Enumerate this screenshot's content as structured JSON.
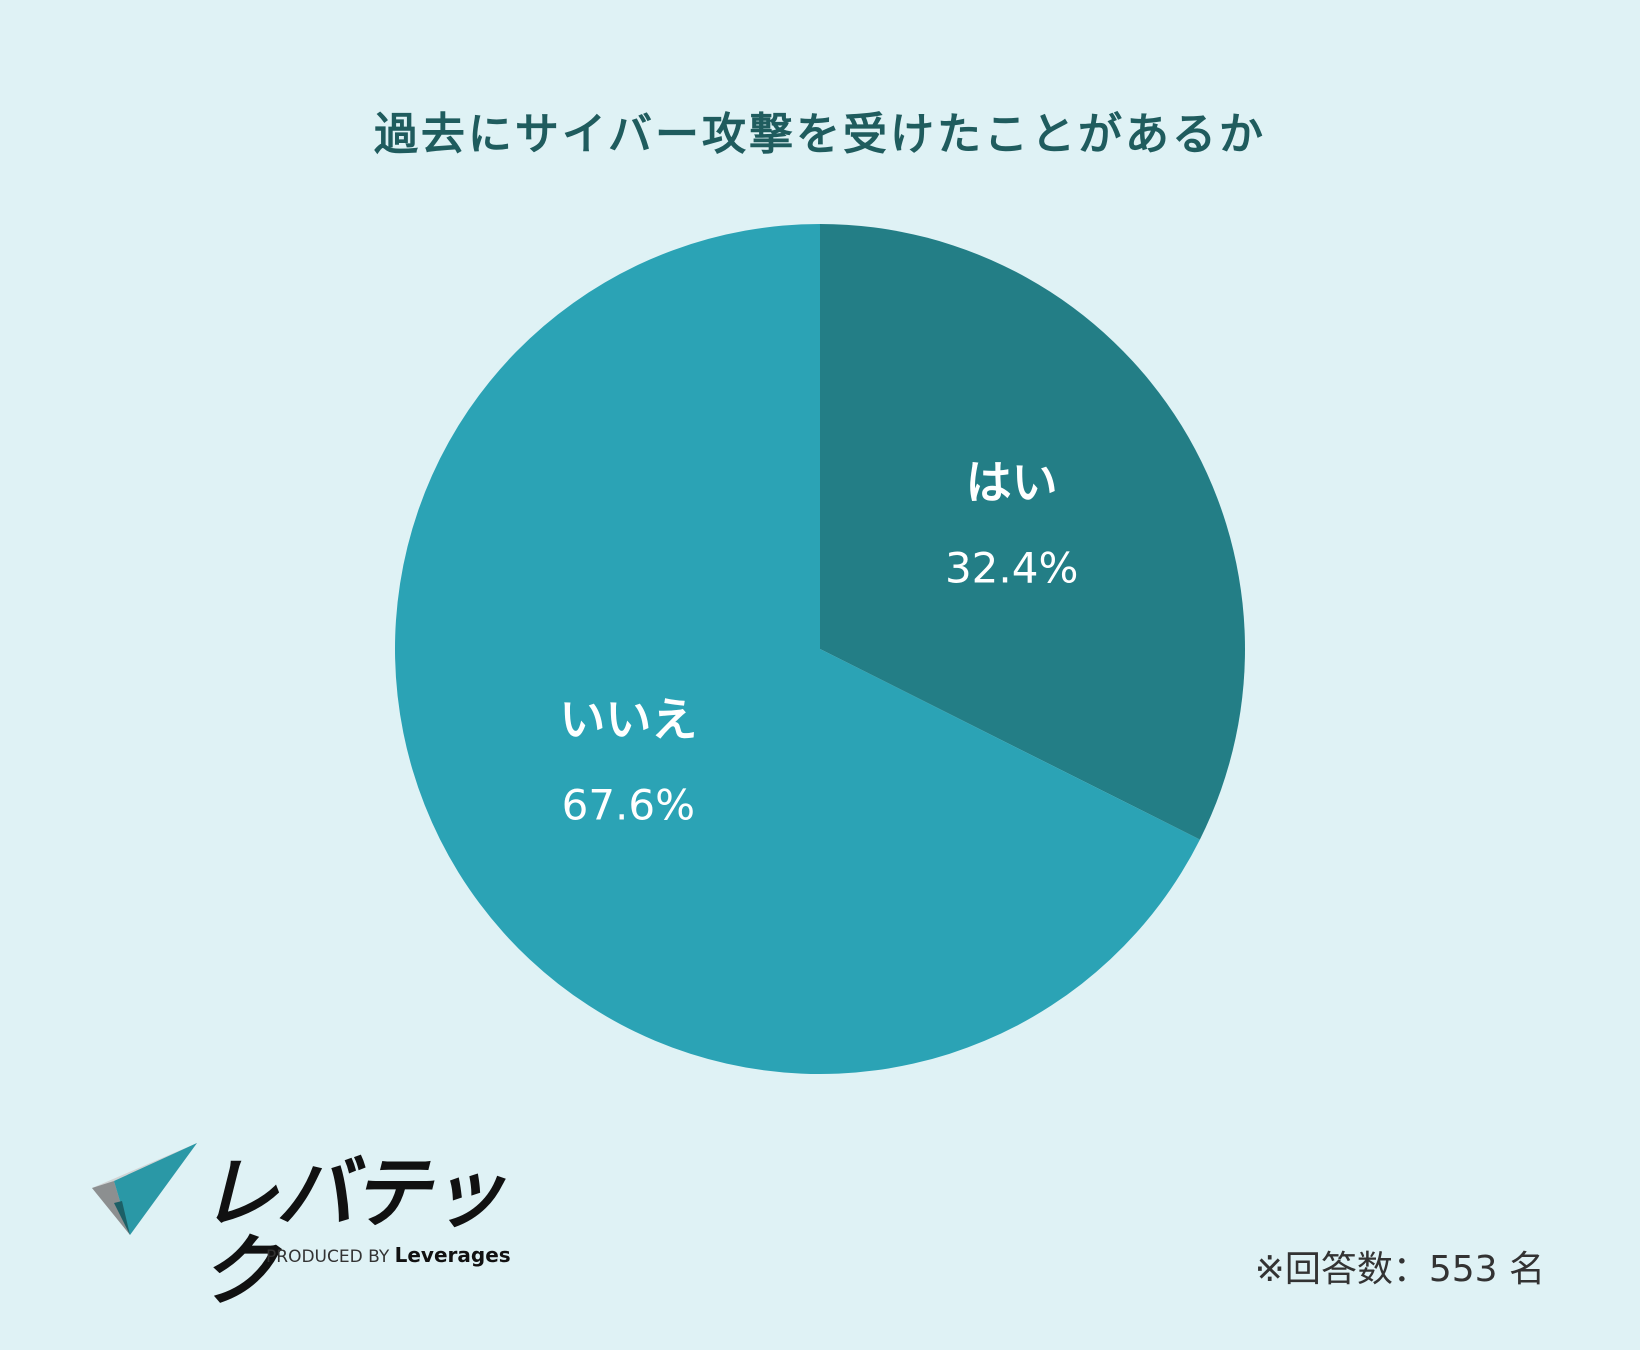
{
  "chart_data": {
    "type": "pie",
    "title": "過去にサイバー攻撃を受けたことがあるか",
    "slices": [
      {
        "label": "はい",
        "value": 32.4,
        "display": "32.4%",
        "color": "#237e86"
      },
      {
        "label": "いいえ",
        "value": 67.6,
        "display": "67.6%",
        "color": "#2ba3b5"
      }
    ],
    "start": "12 o'clock, clockwise"
  },
  "footnote": "※回答数：553 名",
  "logo": {
    "name": "レバテック",
    "produced_by": "PRODUCED BY",
    "company": "Leverages"
  },
  "colors": {
    "background": "#dff2f5",
    "title": "#1f5c5e"
  }
}
